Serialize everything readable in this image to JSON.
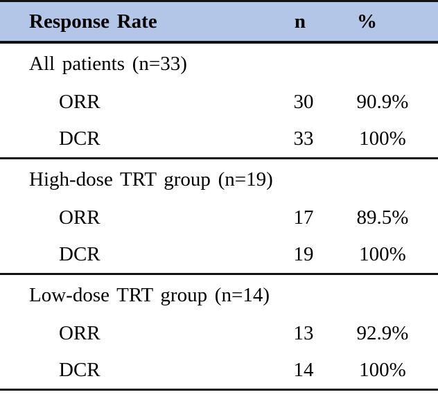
{
  "colors": {
    "header_bg": "#B4C6E7",
    "line": "#111111",
    "text": "#000000"
  },
  "table": {
    "columns": [
      "Response Rate",
      "n",
      "%"
    ],
    "sections": [
      {
        "label": "All patients (n=33)",
        "rows": [
          {
            "label": "ORR",
            "n": "30",
            "pct": "90.9%"
          },
          {
            "label": "DCR",
            "n": "33",
            "pct": "100%"
          }
        ]
      },
      {
        "label": "High-dose TRT group (n=19)",
        "rows": [
          {
            "label": "ORR",
            "n": "17",
            "pct": "89.5%"
          },
          {
            "label": "DCR",
            "n": "19",
            "pct": "100%"
          }
        ]
      },
      {
        "label": "Low-dose TRT group (n=14)",
        "rows": [
          {
            "label": "ORR",
            "n": "13",
            "pct": "92.9%"
          },
          {
            "label": "DCR",
            "n": "14",
            "pct": "100%"
          }
        ]
      }
    ]
  },
  "chart_data": {
    "type": "table",
    "title": "Response Rate",
    "columns": [
      "Response Rate",
      "n",
      "%"
    ],
    "rows": [
      [
        "All patients (n=33)",
        "",
        ""
      ],
      [
        "ORR",
        30,
        "90.9%"
      ],
      [
        "DCR",
        33,
        "100%"
      ],
      [
        "High-dose TRT group (n=19)",
        "",
        ""
      ],
      [
        "ORR",
        17,
        "89.5%"
      ],
      [
        "DCR",
        19,
        "100%"
      ],
      [
        "Low-dose TRT group (n=14)",
        "",
        ""
      ],
      [
        "ORR",
        13,
        "92.9%"
      ],
      [
        "DCR",
        14,
        "100%"
      ]
    ]
  }
}
